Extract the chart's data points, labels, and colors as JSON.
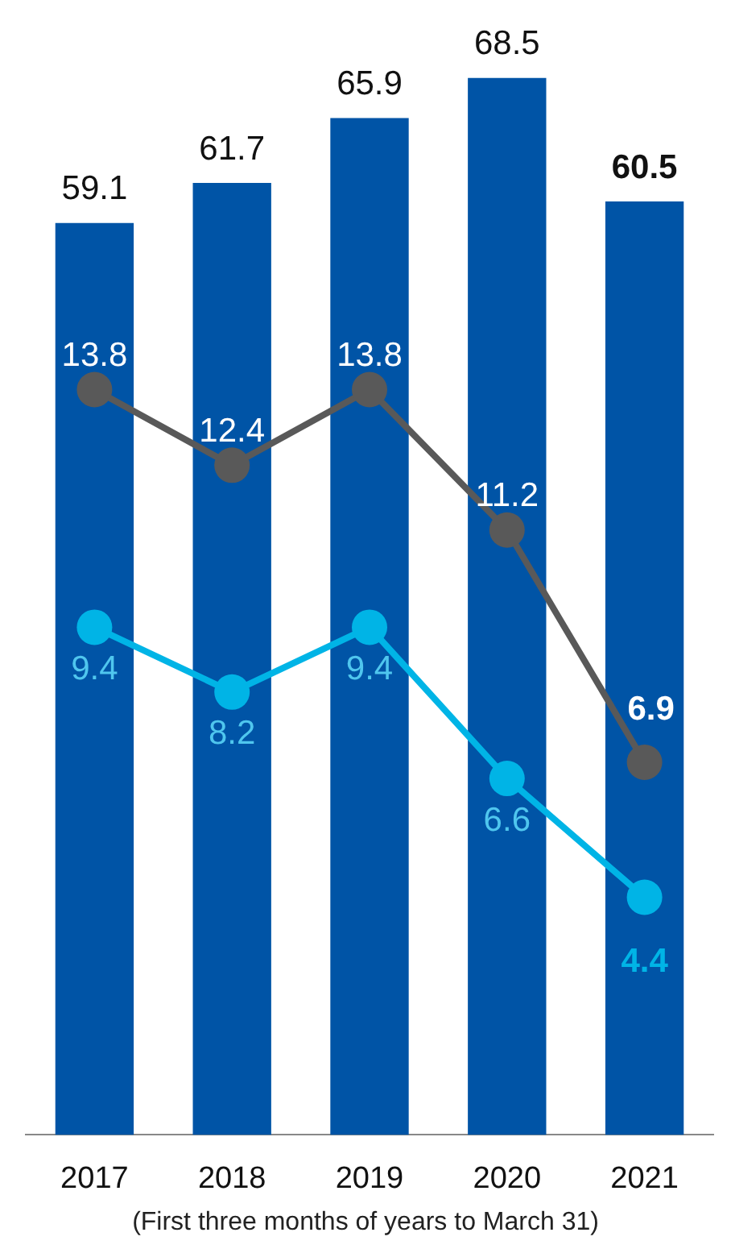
{
  "chart_data": {
    "type": "bar",
    "categories": [
      "2017",
      "2018",
      "2019",
      "2020",
      "2021"
    ],
    "series": [
      {
        "color": "#0054a6",
        "values": [
          59.1,
          61.7,
          65.9,
          68.5,
          60.5
        ]
      },
      {
        "type": "line",
        "axis": "y2",
        "color": "#595959",
        "values": [
          13.8,
          12.4,
          13.8,
          11.2,
          6.9
        ]
      },
      {
        "type": "line",
        "axis": "y2",
        "color": "#00b4e6",
        "values": [
          9.4,
          8.2,
          9.4,
          6.6,
          4.4
        ]
      }
    ],
    "tick_labels": "x",
    "grid": false,
    "legend": false,
    "marker": "circle",
    "line_style": "solid",
    "data_labels": true,
    "annotations": [
      "(First three months of years to March 31)"
    ]
  }
}
